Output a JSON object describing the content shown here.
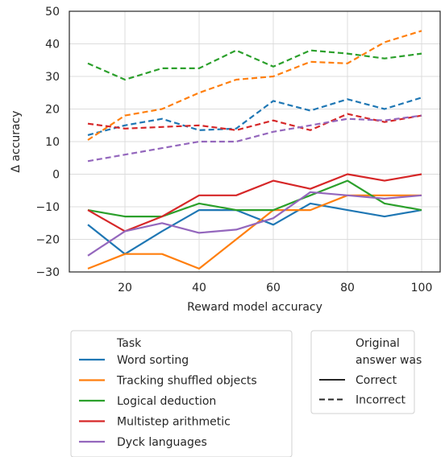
{
  "chart_data": {
    "type": "line",
    "xlabel": "Reward model accuracy",
    "ylabel": "Δ accuracy",
    "xlim": [
      5,
      105
    ],
    "ylim": [
      -30,
      50
    ],
    "xticks": [
      20,
      40,
      60,
      80,
      100
    ],
    "yticks": [
      -30,
      -20,
      -10,
      0,
      10,
      20,
      30,
      40,
      50
    ],
    "grid": true,
    "x": [
      10,
      20,
      30,
      40,
      50,
      60,
      70,
      80,
      90,
      100
    ],
    "series": [
      {
        "name": "Word sorting",
        "task": "word",
        "answer": "correct",
        "color": "#1f77b4",
        "values": [
          -15.5,
          -24.5,
          -17.5,
          -11,
          -11,
          -15.5,
          -9,
          -11,
          -13,
          -11
        ]
      },
      {
        "name": "Word sorting",
        "task": "word",
        "answer": "incorrect",
        "color": "#1f77b4",
        "values": [
          12,
          15,
          17,
          13.5,
          14,
          22.5,
          19.5,
          23,
          20,
          23.5
        ]
      },
      {
        "name": "Tracking shuffled objects",
        "task": "tracking",
        "answer": "correct",
        "color": "#ff7f0e",
        "values": [
          -29,
          -24.5,
          -24.5,
          -29,
          -20,
          -11,
          -11,
          -6.5,
          -6.5,
          -6.5
        ]
      },
      {
        "name": "Tracking shuffled objects",
        "task": "tracking",
        "answer": "incorrect",
        "color": "#ff7f0e",
        "values": [
          10.5,
          18,
          20,
          25,
          29,
          30,
          34.5,
          34,
          40.5,
          44
        ]
      },
      {
        "name": "Logical deduction",
        "task": "logical",
        "answer": "correct",
        "color": "#2ca02c",
        "values": [
          -11,
          -13,
          -13,
          -9,
          -11,
          -11,
          -6.5,
          -2,
          -9,
          -11
        ]
      },
      {
        "name": "Logical deduction",
        "task": "logical",
        "answer": "incorrect",
        "color": "#2ca02c",
        "values": [
          34,
          29,
          32.5,
          32.5,
          38,
          33,
          38,
          37,
          35.5,
          37
        ]
      },
      {
        "name": "Multistep arithmetic",
        "task": "arith",
        "answer": "correct",
        "color": "#d62728",
        "values": [
          -11,
          -17.5,
          -13,
          -6.5,
          -6.5,
          -2,
          -4.5,
          0,
          -2,
          0
        ]
      },
      {
        "name": "Multistep arithmetic",
        "task": "arith",
        "answer": "incorrect",
        "color": "#d62728",
        "values": [
          15.5,
          14,
          14.5,
          15,
          13.5,
          16.5,
          13.5,
          18.5,
          16,
          18
        ]
      },
      {
        "name": "Dyck languages",
        "task": "dyck",
        "answer": "correct",
        "color": "#9467bd",
        "values": [
          -25,
          -17.5,
          -15,
          -18,
          -17,
          -13.5,
          -5.5,
          -6.5,
          -7.5,
          -6.5
        ]
      },
      {
        "name": "Dyck languages",
        "task": "dyck",
        "answer": "incorrect",
        "color": "#9467bd",
        "values": [
          4,
          6,
          8,
          10,
          10,
          13,
          15,
          17,
          16.5,
          18
        ]
      }
    ]
  },
  "legend_task": {
    "title": "Task",
    "items": [
      {
        "label": "Word sorting",
        "color": "#1f77b4"
      },
      {
        "label": "Tracking shuffled objects",
        "color": "#ff7f0e"
      },
      {
        "label": "Logical deduction",
        "color": "#2ca02c"
      },
      {
        "label": "Multistep arithmetic",
        "color": "#d62728"
      },
      {
        "label": "Dyck languages",
        "color": "#9467bd"
      }
    ]
  },
  "legend_answer": {
    "title_line1": "Original",
    "title_line2": "answer was",
    "items": [
      {
        "label": "Correct",
        "style": "solid"
      },
      {
        "label": "Incorrect",
        "style": "dashed"
      }
    ]
  }
}
